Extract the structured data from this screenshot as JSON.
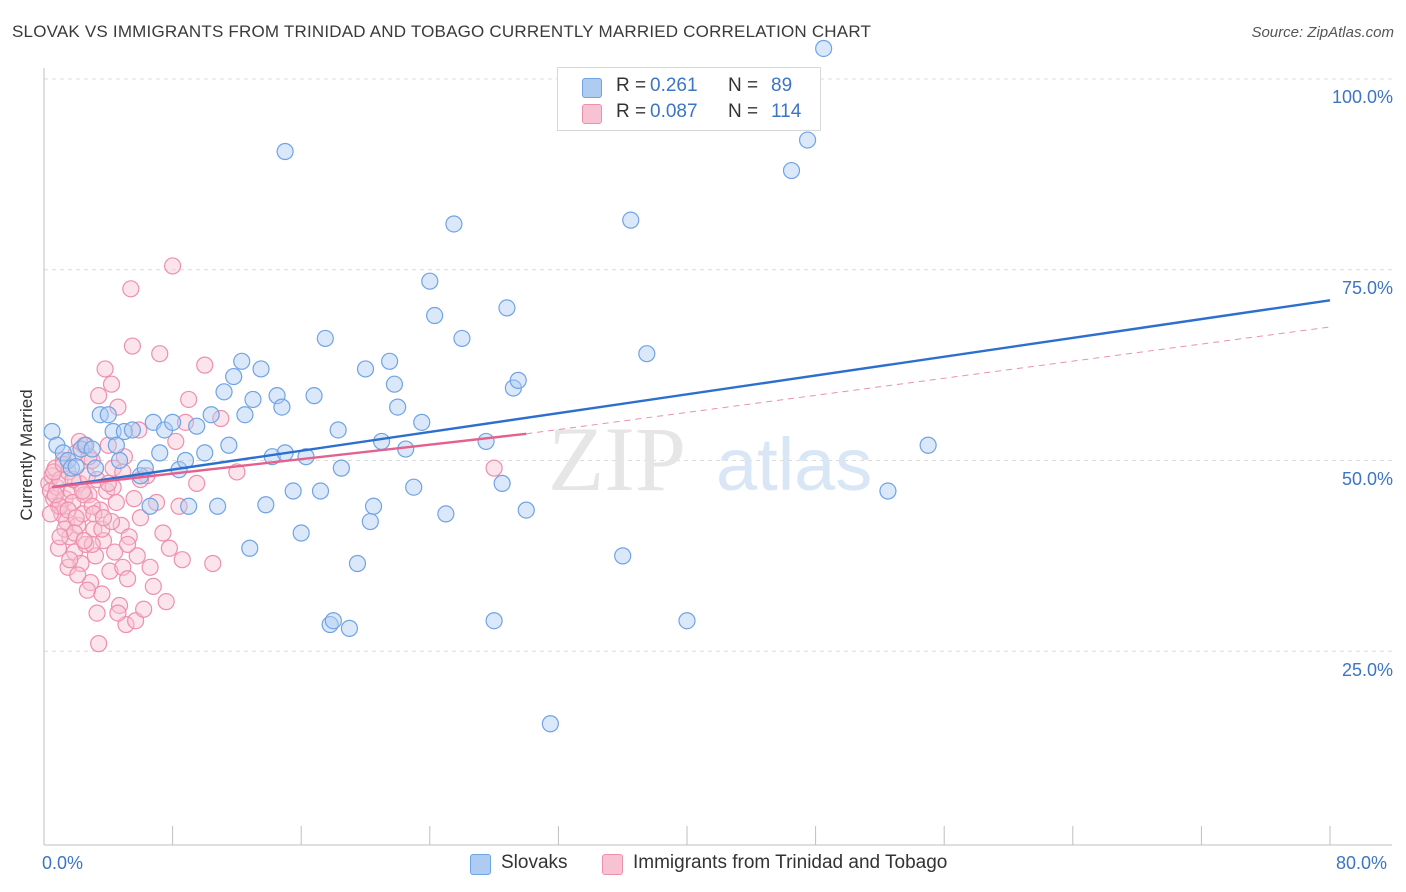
{
  "title": "SLOVAK VS IMMIGRANTS FROM TRINIDAD AND TOBAGO CURRENTLY MARRIED CORRELATION CHART",
  "source": "Source: ZipAtlas.com",
  "watermark": {
    "zip": "ZIP",
    "atlas": "atlas"
  },
  "colors": {
    "slovak": "#6fa3e6",
    "slovak_fill": "#aecbf2",
    "slovak_line": "#2d6fcf",
    "tt": "#ee8fae",
    "tt_fill": "#f7c3d3",
    "tt_line": "#e4608d",
    "axis_text": "#3b75c4"
  },
  "legend": {
    "slovak": {
      "r_label": "R =",
      "r_value": "0.261",
      "n_label": "N =",
      "n_value": "89"
    },
    "tt": {
      "r_label": "R =",
      "r_value": "0.087",
      "n_label": "N =",
      "n_value": "114"
    }
  },
  "chart_data": {
    "type": "scatter",
    "title": "SLOVAK VS IMMIGRANTS FROM TRINIDAD AND TOBAGO CURRENTLY MARRIED CORRELATION CHART",
    "xlabel": "",
    "ylabel": "Currently Married",
    "xlim": [
      0,
      80
    ],
    "ylim": [
      0,
      100
    ],
    "x_ticks": [
      "0.0%",
      "80.0%"
    ],
    "y_ticks": [
      "100.0%",
      "75.0%",
      "50.0%",
      "25.0%"
    ],
    "y_tick_values": [
      100,
      75,
      50,
      25
    ],
    "grid": "horizontal dashed",
    "legend_position": "bottom-center",
    "series": [
      {
        "name": "Slovaks",
        "r": 0.261,
        "n": 89,
        "trend": {
          "x": [
            0.5,
            80
          ],
          "y": [
            46.5,
            71
          ]
        },
        "points": [
          [
            0.5,
            53.8
          ],
          [
            0.8,
            52.0
          ],
          [
            1.2,
            51.0
          ],
          [
            1.5,
            50.0
          ],
          [
            1.7,
            49.0
          ],
          [
            2.0,
            49.2
          ],
          [
            2.3,
            51.5
          ],
          [
            2.6,
            52.0
          ],
          [
            3.0,
            51.5
          ],
          [
            3.2,
            49.0
          ],
          [
            3.5,
            56.0
          ],
          [
            4.0,
            56.0
          ],
          [
            4.3,
            53.8
          ],
          [
            4.7,
            50.0
          ],
          [
            5.0,
            53.8
          ],
          [
            5.5,
            54.0
          ],
          [
            6.0,
            48.0
          ],
          [
            6.3,
            49.0
          ],
          [
            6.6,
            44.0
          ],
          [
            6.8,
            55.0
          ],
          [
            7.2,
            51.0
          ],
          [
            7.5,
            54.0
          ],
          [
            8.0,
            55.0
          ],
          [
            8.4,
            48.8
          ],
          [
            8.8,
            50.0
          ],
          [
            9.0,
            44.0
          ],
          [
            9.5,
            54.5
          ],
          [
            10.0,
            51.0
          ],
          [
            10.4,
            56.0
          ],
          [
            10.8,
            44.0
          ],
          [
            11.2,
            59.0
          ],
          [
            11.5,
            52.0
          ],
          [
            11.8,
            61.0
          ],
          [
            12.3,
            63.0
          ],
          [
            12.5,
            56.0
          ],
          [
            12.8,
            38.5
          ],
          [
            13.0,
            58.0
          ],
          [
            13.5,
            62.0
          ],
          [
            13.8,
            44.2
          ],
          [
            14.2,
            50.5
          ],
          [
            14.5,
            58.5
          ],
          [
            14.8,
            57.0
          ],
          [
            15.0,
            51.0
          ],
          [
            15.5,
            46.0
          ],
          [
            16.0,
            40.5
          ],
          [
            16.3,
            50.5
          ],
          [
            16.8,
            58.5
          ],
          [
            17.2,
            46.0
          ],
          [
            17.5,
            66.0
          ],
          [
            17.8,
            28.5
          ],
          [
            18.0,
            29.0
          ],
          [
            18.3,
            54.0
          ],
          [
            18.5,
            49.0
          ],
          [
            19.0,
            28.0
          ],
          [
            19.5,
            36.5
          ],
          [
            20.0,
            62.0
          ],
          [
            20.3,
            42.0
          ],
          [
            20.5,
            44.0
          ],
          [
            21.0,
            52.5
          ],
          [
            21.5,
            63.0
          ],
          [
            21.8,
            60.0
          ],
          [
            22.0,
            57.0
          ],
          [
            22.5,
            51.5
          ],
          [
            23.0,
            46.5
          ],
          [
            23.5,
            55.0
          ],
          [
            24.0,
            73.5
          ],
          [
            24.3,
            69.0
          ],
          [
            25.0,
            43.0
          ],
          [
            25.5,
            81.0
          ],
          [
            26.0,
            66.0
          ],
          [
            27.5,
            52.5
          ],
          [
            28.0,
            29.0
          ],
          [
            28.5,
            47.0
          ],
          [
            28.8,
            70.0
          ],
          [
            29.2,
            59.5
          ],
          [
            29.5,
            60.5
          ],
          [
            30.0,
            43.5
          ],
          [
            31.5,
            15.5
          ],
          [
            36.0,
            37.5
          ],
          [
            36.5,
            81.5
          ],
          [
            37.5,
            64.0
          ],
          [
            40.0,
            29.0
          ],
          [
            46.5,
            88.0
          ],
          [
            47.5,
            92.0
          ],
          [
            48.5,
            104.0
          ],
          [
            52.5,
            46.0
          ],
          [
            55.0,
            52.0
          ],
          [
            15.0,
            90.5
          ],
          [
            4.5,
            52.0
          ]
        ]
      },
      {
        "name": "Immigrants from Trinidad and Tobago",
        "r": 0.087,
        "n": 114,
        "trend": {
          "x": [
            0.5,
            30
          ],
          "y": [
            46.5,
            53.5
          ],
          "extended": {
            "x": [
              30,
              80
            ],
            "y": [
              53.5,
              67.5
            ]
          }
        },
        "points": [
          [
            0.3,
            47.0
          ],
          [
            0.4,
            46.0
          ],
          [
            0.5,
            48.0
          ],
          [
            0.6,
            45.0
          ],
          [
            0.7,
            49.0
          ],
          [
            0.8,
            46.5
          ],
          [
            0.9,
            44.0
          ],
          [
            1.0,
            47.5
          ],
          [
            1.1,
            43.0
          ],
          [
            1.2,
            50.0
          ],
          [
            1.3,
            45.0
          ],
          [
            1.4,
            42.0
          ],
          [
            1.5,
            48.5
          ],
          [
            1.6,
            40.0
          ],
          [
            1.7,
            46.0
          ],
          [
            1.8,
            44.5
          ],
          [
            1.9,
            38.0
          ],
          [
            2.0,
            51.0
          ],
          [
            2.1,
            41.5
          ],
          [
            2.2,
            47.0
          ],
          [
            2.3,
            36.5
          ],
          [
            2.4,
            43.0
          ],
          [
            2.5,
            52.0
          ],
          [
            2.6,
            39.0
          ],
          [
            2.7,
            48.0
          ],
          [
            2.8,
            45.5
          ],
          [
            2.9,
            34.0
          ],
          [
            3.0,
            50.0
          ],
          [
            3.1,
            41.0
          ],
          [
            3.2,
            37.5
          ],
          [
            3.3,
            47.5
          ],
          [
            3.4,
            58.5
          ],
          [
            3.5,
            43.5
          ],
          [
            3.6,
            32.5
          ],
          [
            3.7,
            39.5
          ],
          [
            3.8,
            62.0
          ],
          [
            3.9,
            46.0
          ],
          [
            4.0,
            52.0
          ],
          [
            4.1,
            35.5
          ],
          [
            4.2,
            60.0
          ],
          [
            4.3,
            49.0
          ],
          [
            4.4,
            38.0
          ],
          [
            4.5,
            44.5
          ],
          [
            4.6,
            57.0
          ],
          [
            4.7,
            31.0
          ],
          [
            4.8,
            41.5
          ],
          [
            4.9,
            36.0
          ],
          [
            5.0,
            50.5
          ],
          [
            5.1,
            28.5
          ],
          [
            5.2,
            34.5
          ],
          [
            5.3,
            40.0
          ],
          [
            5.4,
            72.5
          ],
          [
            5.5,
            65.0
          ],
          [
            5.6,
            45.0
          ],
          [
            5.7,
            29.0
          ],
          [
            5.8,
            37.5
          ],
          [
            5.9,
            54.0
          ],
          [
            6.0,
            42.5
          ],
          [
            6.2,
            30.5
          ],
          [
            6.4,
            48.0
          ],
          [
            6.6,
            36.0
          ],
          [
            6.8,
            33.5
          ],
          [
            7.0,
            44.5
          ],
          [
            7.2,
            64.0
          ],
          [
            7.4,
            40.5
          ],
          [
            7.6,
            31.5
          ],
          [
            7.8,
            38.5
          ],
          [
            8.0,
            75.5
          ],
          [
            8.2,
            52.5
          ],
          [
            8.4,
            44.0
          ],
          [
            8.6,
            37.0
          ],
          [
            8.8,
            55.0
          ],
          [
            9.0,
            58.0
          ],
          [
            9.5,
            47.0
          ],
          [
            10.0,
            62.5
          ],
          [
            10.5,
            36.5
          ],
          [
            11.0,
            55.5
          ],
          [
            12.0,
            48.5
          ],
          [
            28.0,
            49.0
          ],
          [
            1.0,
            44.0
          ],
          [
            1.5,
            43.5
          ],
          [
            2.0,
            42.5
          ],
          [
            2.5,
            45.5
          ],
          [
            3.0,
            44.0
          ],
          [
            0.6,
            48.5
          ],
          [
            1.2,
            49.5
          ],
          [
            1.8,
            47.5
          ],
          [
            2.4,
            46.0
          ],
          [
            3.0,
            39.0
          ],
          [
            3.6,
            41.0
          ],
          [
            4.2,
            42.0
          ],
          [
            0.9,
            38.5
          ],
          [
            1.5,
            36.0
          ],
          [
            2.1,
            35.0
          ],
          [
            2.7,
            33.0
          ],
          [
            3.3,
            30.0
          ],
          [
            0.7,
            45.5
          ],
          [
            1.3,
            41.0
          ],
          [
            1.9,
            40.5
          ],
          [
            2.5,
            39.5
          ],
          [
            3.1,
            43.0
          ],
          [
            3.7,
            42.5
          ],
          [
            4.3,
            46.5
          ],
          [
            4.9,
            48.5
          ],
          [
            0.4,
            43.0
          ],
          [
            1.0,
            40.0
          ],
          [
            1.6,
            37.0
          ],
          [
            2.2,
            52.5
          ],
          [
            2.8,
            50.5
          ],
          [
            3.4,
            26.0
          ],
          [
            4.0,
            47.0
          ],
          [
            4.6,
            30.0
          ],
          [
            5.2,
            39.0
          ],
          [
            6.0,
            47.5
          ]
        ]
      }
    ]
  },
  "bottom_legend": {
    "slovak": "Slovaks",
    "tt": "Immigrants from Trinidad and Tobago"
  }
}
